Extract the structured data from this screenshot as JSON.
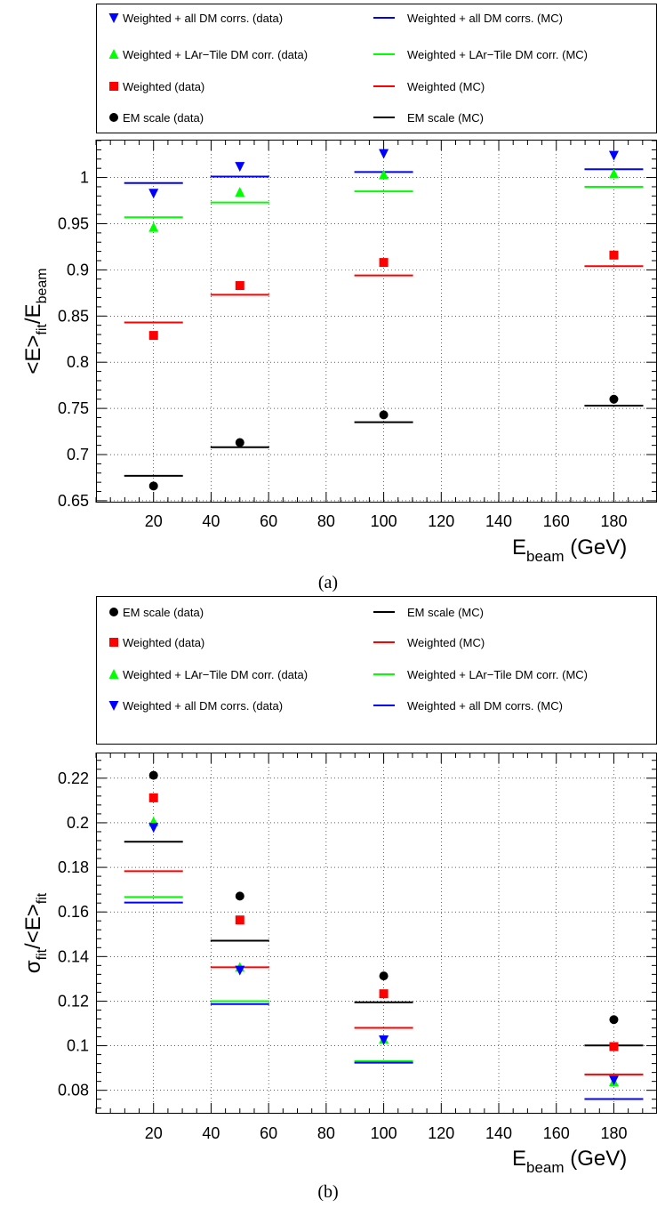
{
  "chart_data": [
    {
      "type": "scatter",
      "caption": "(a)",
      "ylabel": {
        "main": "<E>",
        "sub1": "fit",
        "mid": "/E",
        "sub2": "beam"
      },
      "xlabel": {
        "main": "E",
        "sub": "beam",
        "rest": " (GeV)"
      },
      "xlim": [
        0,
        195
      ],
      "ylim": [
        0.648,
        1.041
      ],
      "xticks": [
        20,
        40,
        60,
        80,
        100,
        120,
        140,
        160,
        180
      ],
      "yticks": [
        0.65,
        0.7,
        0.75,
        0.8,
        0.85,
        0.9,
        0.95,
        1
      ],
      "ytick_labels": [
        "0.65",
        "0.7",
        "0.75",
        "0.8",
        "0.85",
        "0.9",
        "0.95",
        "1"
      ],
      "legend_placement": "top",
      "series": [
        {
          "name": "Weighted + all DM corrs. (data)",
          "kind": "data",
          "marker": "triangle-down",
          "color": "#0000ff",
          "x": [
            20,
            50,
            100,
            180
          ],
          "y": [
            0.983,
            1.012,
            1.026,
            1.024
          ]
        },
        {
          "name": "Weighted + all DM corrs. (MC)",
          "kind": "mc",
          "color": "#0000ff",
          "x": [
            20,
            50,
            100,
            180
          ],
          "y": [
            0.994,
            1.001,
            1.006,
            1.009
          ]
        },
        {
          "name": "Weighted + LAr−Tile DM corr. (data)",
          "kind": "data",
          "marker": "triangle-up",
          "color": "#00ff00",
          "x": [
            20,
            50,
            100,
            180
          ],
          "y": [
            0.946,
            0.984,
            1.003,
            1.004
          ]
        },
        {
          "name": "Weighted + LAr−Tile DM corr. (MC)",
          "kind": "mc",
          "color": "#00ff00",
          "x": [
            20,
            50,
            100,
            180
          ],
          "y": [
            0.957,
            0.973,
            0.985,
            0.99
          ]
        },
        {
          "name": "Weighted (data)",
          "kind": "data",
          "marker": "square",
          "color": "#ff0000",
          "x": [
            20,
            50,
            100,
            180
          ],
          "y": [
            0.829,
            0.883,
            0.908,
            0.916
          ]
        },
        {
          "name": "Weighted (MC)",
          "kind": "mc",
          "color": "#ff0000",
          "x": [
            20,
            50,
            100,
            180
          ],
          "y": [
            0.843,
            0.873,
            0.894,
            0.904
          ]
        },
        {
          "name": "EM scale (data)",
          "kind": "data",
          "marker": "circle",
          "color": "#000000",
          "x": [
            20,
            50,
            100,
            180
          ],
          "y": [
            0.666,
            0.713,
            0.743,
            0.76
          ]
        },
        {
          "name": "EM scale (MC)",
          "kind": "mc",
          "color": "#000000",
          "x": [
            20,
            50,
            100,
            180
          ],
          "y": [
            0.677,
            0.708,
            0.735,
            0.753
          ]
        }
      ],
      "legend_rows": [
        [
          0,
          1
        ],
        [
          2,
          3
        ],
        [
          4,
          5
        ],
        [
          6,
          7
        ]
      ]
    },
    {
      "type": "scatter",
      "caption": "(b)",
      "ylabel": {
        "main": "σ",
        "sub1": "fit",
        "mid": "/<E>",
        "sub2": "fit"
      },
      "xlabel": {
        "main": "E",
        "sub": "beam",
        "rest": " (GeV)"
      },
      "xlim": [
        0,
        195
      ],
      "ylim": [
        0.0695,
        0.2315
      ],
      "xticks": [
        20,
        40,
        60,
        80,
        100,
        120,
        140,
        160,
        180
      ],
      "yticks": [
        0.08,
        0.1,
        0.12,
        0.14,
        0.16,
        0.18,
        0.2,
        0.22
      ],
      "ytick_labels": [
        "0.08",
        "0.1",
        "0.12",
        "0.14",
        "0.16",
        "0.18",
        "0.2",
        "0.22"
      ],
      "legend_placement": "top",
      "series": [
        {
          "name": "EM scale (data)",
          "kind": "data",
          "marker": "circle",
          "color": "#000000",
          "x": [
            20,
            50,
            100,
            180
          ],
          "y": [
            0.2213,
            0.1671,
            0.1313,
            0.1117
          ]
        },
        {
          "name": "EM scale (MC)",
          "kind": "mc",
          "color": "#000000",
          "x": [
            20,
            50,
            100,
            180
          ],
          "y": [
            0.1915,
            0.1471,
            0.1195,
            0.1001
          ]
        },
        {
          "name": "Weighted (data)",
          "kind": "data",
          "marker": "square",
          "color": "#ff0000",
          "x": [
            20,
            50,
            100,
            180
          ],
          "y": [
            0.2112,
            0.1564,
            0.1233,
            0.0996
          ]
        },
        {
          "name": "Weighted (MC)",
          "kind": "mc",
          "color": "#ff0000",
          "x": [
            20,
            50,
            100,
            180
          ],
          "y": [
            0.1783,
            0.1352,
            0.108,
            0.0871
          ]
        },
        {
          "name": "Weighted + LAr−Tile DM corr. (data)",
          "kind": "data",
          "marker": "triangle-up",
          "color": "#00ff00",
          "x": [
            20,
            50,
            100,
            180
          ],
          "y": [
            0.2005,
            0.1352,
            0.1029,
            0.0838
          ]
        },
        {
          "name": "Weighted + LAr−Tile DM corr. (MC)",
          "kind": "mc",
          "color": "#00ff00",
          "x": [
            20,
            50,
            100,
            180
          ],
          "y": [
            0.1667,
            0.12,
            0.0931,
            0.0761
          ]
        },
        {
          "name": "Weighted + all DM corrs. (data)",
          "kind": "data",
          "marker": "triangle-down",
          "color": "#0000ff",
          "x": [
            20,
            50,
            100,
            180
          ],
          "y": [
            0.1979,
            0.1339,
            0.1026,
            0.0846
          ]
        },
        {
          "name": "Weighted + all DM corrs. (MC)",
          "kind": "mc",
          "color": "#0000ff",
          "x": [
            20,
            50,
            100,
            180
          ],
          "y": [
            0.1642,
            0.1187,
            0.0924,
            0.0761
          ]
        }
      ],
      "legend_rows": [
        [
          0,
          1
        ],
        [
          2,
          3
        ],
        [
          4,
          5
        ],
        [
          6,
          7
        ]
      ]
    }
  ]
}
